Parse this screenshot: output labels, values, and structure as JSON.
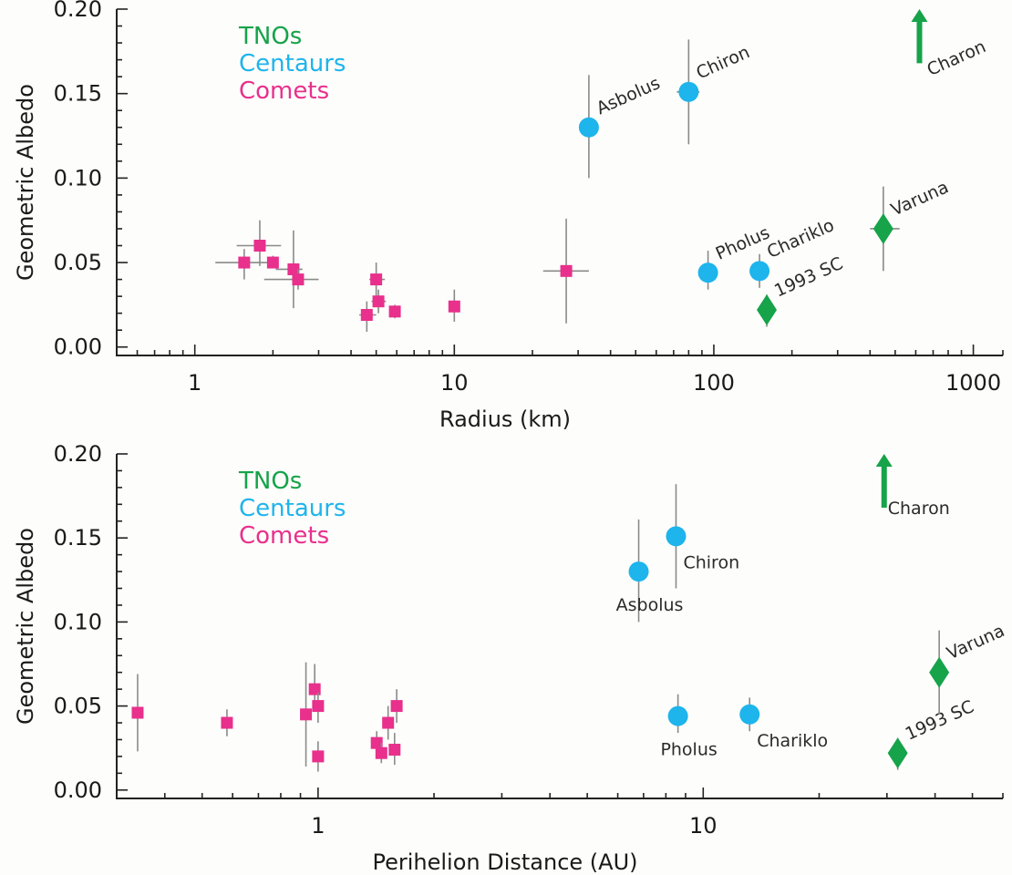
{
  "colors": {
    "tno": "#16a34a",
    "centaur": "#1eb4ec",
    "comet": "#e8308c",
    "error": "#8a8a8a"
  },
  "chart_data": [
    {
      "type": "scatter",
      "xlabel": "Radius (km)",
      "ylabel": "Geometric Albedo",
      "xscale": "log",
      "xlim": [
        0.5,
        1300
      ],
      "ylim": [
        -0.005,
        0.2
      ],
      "xticks": [
        {
          "value": 1,
          "label": "1"
        },
        {
          "value": 10,
          "label": "10"
        },
        {
          "value": 100,
          "label": "100"
        },
        {
          "value": 1000,
          "label": "1000"
        }
      ],
      "yticks": [
        {
          "value": 0.0,
          "label": "0.00"
        },
        {
          "value": 0.05,
          "label": "0.05"
        },
        {
          "value": 0.1,
          "label": "0.10"
        },
        {
          "value": 0.15,
          "label": "0.15"
        },
        {
          "value": 0.2,
          "label": "0.20"
        }
      ],
      "legend": [
        {
          "label": "TNOs",
          "group": "tno"
        },
        {
          "label": "Centaurs",
          "group": "centaur"
        },
        {
          "label": "Comets",
          "group": "comet"
        }
      ],
      "legend_placement": "top-left",
      "series": [
        {
          "name": "TNOs",
          "group": "tno",
          "marker": "diamond",
          "points": [
            {
              "x": 160,
              "y": 0.022,
              "ylo": 0.012,
              "yhi": 0.031,
              "label": "1993 SC",
              "label_pos": "ur"
            },
            {
              "x": 450,
              "y": 0.07,
              "ylo": 0.045,
              "yhi": 0.095,
              "xlo": 400,
              "xhi": 520,
              "label": "Varuna",
              "label_pos": "ur"
            }
          ]
        },
        {
          "name": "Centaurs",
          "group": "centaur",
          "marker": "circle",
          "points": [
            {
              "x": 33,
              "y": 0.13,
              "ylo": 0.1,
              "yhi": 0.161,
              "xlo": 31,
              "xhi": 36,
              "label": "Asbolus",
              "label_pos": "ur"
            },
            {
              "x": 80,
              "y": 0.151,
              "ylo": 0.12,
              "yhi": 0.182,
              "xlo": 72,
              "xhi": 88,
              "label": "Chiron",
              "label_pos": "ur"
            },
            {
              "x": 95,
              "y": 0.044,
              "ylo": 0.034,
              "yhi": 0.057,
              "xlo": 90,
              "xhi": 101,
              "label": "Pholus",
              "label_pos": "ur"
            },
            {
              "x": 150,
              "y": 0.045,
              "ylo": 0.035,
              "yhi": 0.055,
              "label": "Chariklo",
              "label_pos": "ur"
            }
          ]
        },
        {
          "name": "Comets",
          "group": "comet",
          "marker": "square",
          "points": [
            {
              "x": 1.55,
              "y": 0.05,
              "ylo": 0.04,
              "yhi": 0.058,
              "xlo": 1.2,
              "xhi": 2.0
            },
            {
              "x": 1.78,
              "y": 0.06,
              "ylo": 0.048,
              "yhi": 0.075,
              "xlo": 1.45,
              "xhi": 2.15
            },
            {
              "x": 2.0,
              "y": 0.05,
              "ylo": 0.047,
              "yhi": 0.054
            },
            {
              "x": 2.4,
              "y": 0.046,
              "ylo": 0.023,
              "yhi": 0.069,
              "xlo": 2.05,
              "xhi": 2.6
            },
            {
              "x": 2.5,
              "y": 0.04,
              "ylo": 0.034,
              "yhi": 0.046,
              "xlo": 1.85,
              "xhi": 3.0
            },
            {
              "x": 4.6,
              "y": 0.019,
              "ylo": 0.009,
              "yhi": 0.027,
              "xlo": 4.3,
              "xhi": 5.0
            },
            {
              "x": 5.0,
              "y": 0.04,
              "ylo": 0.03,
              "yhi": 0.05,
              "xlo": 4.7,
              "xhi": 5.4
            },
            {
              "x": 5.1,
              "y": 0.027,
              "ylo": 0.02,
              "yhi": 0.034,
              "xlo": 4.8,
              "xhi": 5.45
            },
            {
              "x": 5.9,
              "y": 0.021,
              "ylo": 0.017,
              "yhi": 0.025
            },
            {
              "x": 10.0,
              "y": 0.024,
              "ylo": 0.015,
              "yhi": 0.034
            },
            {
              "x": 27,
              "y": 0.045,
              "ylo": 0.014,
              "yhi": 0.076,
              "xlo": 22,
              "xhi": 33
            }
          ]
        }
      ],
      "annotations": [
        {
          "text": "Charon",
          "kind": "arrow",
          "x": 620,
          "y_bottom": 0.168,
          "y_top": 0.2,
          "group": "tno"
        }
      ]
    },
    {
      "type": "scatter",
      "xlabel": "Perihelion Distance (AU)",
      "ylabel": "Geometric Albedo",
      "xscale": "log",
      "xlim": [
        0.3,
        60
      ],
      "ylim": [
        -0.005,
        0.2
      ],
      "xticks": [
        {
          "value": 1,
          "label": "1"
        },
        {
          "value": 10,
          "label": "10"
        }
      ],
      "yticks": [
        {
          "value": 0.0,
          "label": "0.00"
        },
        {
          "value": 0.05,
          "label": "0.05"
        },
        {
          "value": 0.1,
          "label": "0.10"
        },
        {
          "value": 0.15,
          "label": "0.15"
        },
        {
          "value": 0.2,
          "label": "0.20"
        }
      ],
      "legend": [
        {
          "label": "TNOs",
          "group": "tno"
        },
        {
          "label": "Centaurs",
          "group": "centaur"
        },
        {
          "label": "Comets",
          "group": "comet"
        }
      ],
      "legend_placement": "top-left",
      "series": [
        {
          "name": "TNOs",
          "group": "tno",
          "marker": "diamond",
          "points": [
            {
              "x": 32,
              "y": 0.022,
              "ylo": 0.012,
              "yhi": 0.031,
              "label": "1993 SC",
              "label_pos": "ur"
            },
            {
              "x": 41,
              "y": 0.07,
              "ylo": 0.045,
              "yhi": 0.095,
              "label": "Varuna",
              "label_pos": "ur"
            }
          ]
        },
        {
          "name": "Centaurs",
          "group": "centaur",
          "marker": "circle",
          "points": [
            {
              "x": 6.8,
              "y": 0.13,
              "ylo": 0.1,
              "yhi": 0.161,
              "label": "Asbolus",
              "label_pos": "below"
            },
            {
              "x": 8.5,
              "y": 0.151,
              "ylo": 0.12,
              "yhi": 0.182,
              "label": "Chiron",
              "label_pos": "lr"
            },
            {
              "x": 8.6,
              "y": 0.044,
              "ylo": 0.034,
              "yhi": 0.057,
              "label": "Pholus",
              "label_pos": "below"
            },
            {
              "x": 13.2,
              "y": 0.045,
              "ylo": 0.035,
              "yhi": 0.055,
              "label": "Chariklo",
              "label_pos": "lr"
            }
          ]
        },
        {
          "name": "Comets",
          "group": "comet",
          "marker": "square",
          "points": [
            {
              "x": 0.34,
              "y": 0.046,
              "ylo": 0.023,
              "yhi": 0.069
            },
            {
              "x": 0.58,
              "y": 0.04,
              "ylo": 0.032,
              "yhi": 0.048
            },
            {
              "x": 0.93,
              "y": 0.045,
              "ylo": 0.014,
              "yhi": 0.076
            },
            {
              "x": 0.98,
              "y": 0.06,
              "ylo": 0.048,
              "yhi": 0.075
            },
            {
              "x": 1.0,
              "y": 0.05,
              "ylo": 0.04,
              "yhi": 0.058
            },
            {
              "x": 1.0,
              "y": 0.02,
              "ylo": 0.011,
              "yhi": 0.029
            },
            {
              "x": 1.42,
              "y": 0.028,
              "ylo": 0.02,
              "yhi": 0.035
            },
            {
              "x": 1.46,
              "y": 0.022,
              "ylo": 0.016,
              "yhi": 0.028
            },
            {
              "x": 1.52,
              "y": 0.04,
              "ylo": 0.03,
              "yhi": 0.05
            },
            {
              "x": 1.58,
              "y": 0.024,
              "ylo": 0.015,
              "yhi": 0.034
            },
            {
              "x": 1.6,
              "y": 0.05,
              "ylo": 0.04,
              "yhi": 0.06
            }
          ]
        }
      ],
      "annotations": [
        {
          "text": "Charon",
          "kind": "arrow",
          "x": 29.5,
          "y_bottom": 0.168,
          "y_top": 0.2,
          "group": "tno"
        }
      ]
    }
  ]
}
